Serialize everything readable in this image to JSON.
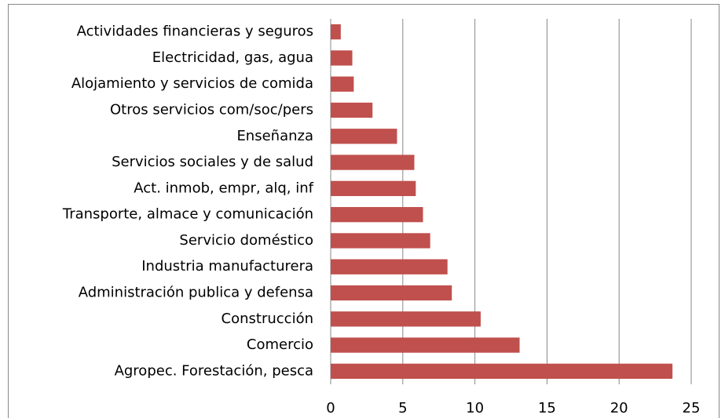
{
  "chart_data": {
    "type": "bar",
    "orientation": "horizontal",
    "categories": [
      "Actividades financieras y seguros",
      "Electricidad, gas, agua",
      "Alojamiento y servicios de comida",
      "Otros servicios com/soc/pers",
      "Enseñanza",
      "Servicios sociales y de salud",
      "Act. inmob, empr, alq, inf",
      "Transporte, almace y comunicación",
      "Servicio doméstico",
      "Industria manufacturera",
      "Administración publica y defensa",
      "Construcción",
      "Comercio",
      "Agropec. Forestación, pesca"
    ],
    "values": [
      0.7,
      1.5,
      1.6,
      2.9,
      4.6,
      5.8,
      5.9,
      6.4,
      6.9,
      8.1,
      8.4,
      10.4,
      13.1,
      23.7
    ],
    "color": "#c0504d",
    "xlim": [
      0,
      25
    ],
    "xticks": [
      0,
      5,
      10,
      15,
      20,
      25
    ],
    "grid": true
  }
}
